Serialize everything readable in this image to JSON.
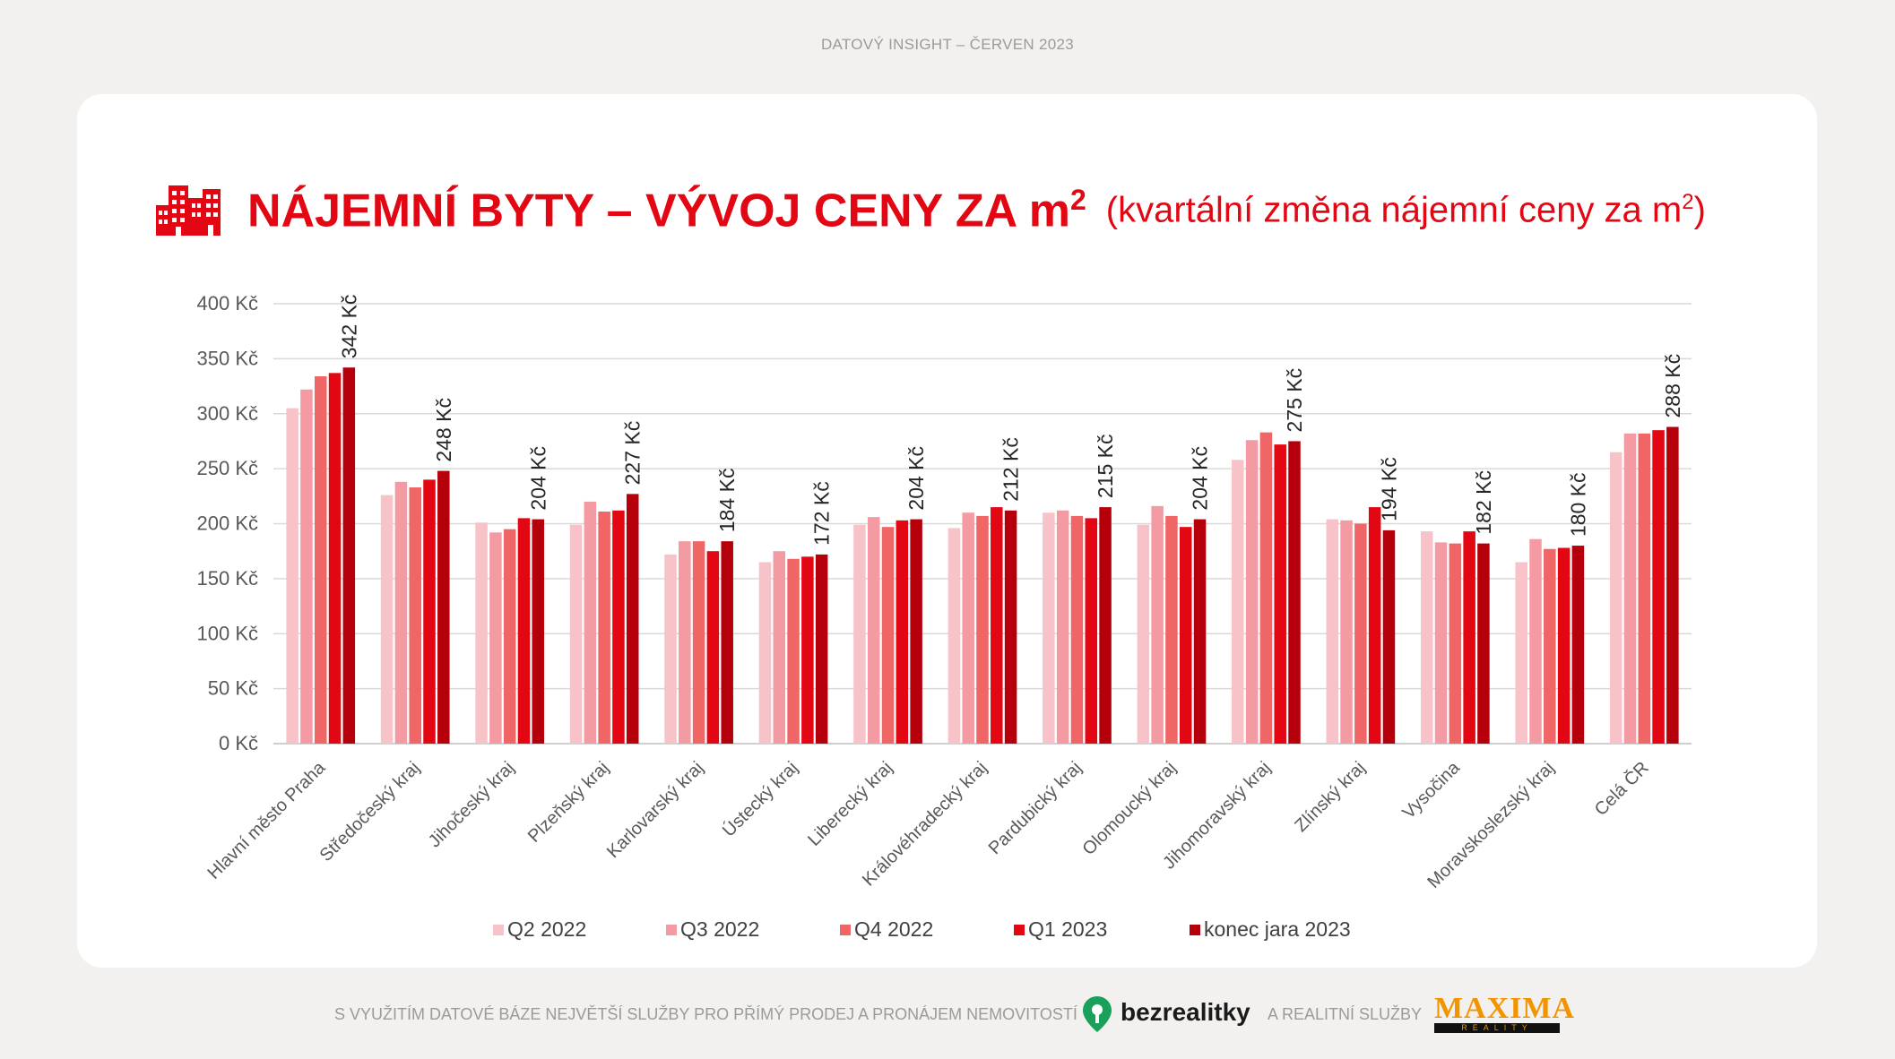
{
  "header": {
    "tag": "DATOVÝ INSIGHT – ČERVEN 2023"
  },
  "title": {
    "main": "NÁJEMNÍ BYTY – VÝVOJ CENY ZA m",
    "main_sup": "2",
    "sub": "(kvartální změna nájemní ceny za m",
    "sub_sup": "2",
    "sub_end": ")"
  },
  "icon": "buildings-icon",
  "footer": {
    "text_left": "S VYUŽITÍM DATOVÉ BÁZE NEJVĚTŠÍ SLUŽBY PRO PŘÍMÝ PRODEJ A PRONÁJEM NEMOVITOSTÍ",
    "brand1": "bezrealitky",
    "text_mid": "A REALITNÍ SLUŽBY",
    "brand2": "MAXIMA",
    "brand2_sub": "REALITY"
  },
  "colors": {
    "accent": "#e30613",
    "series": [
      "#f8c3c8",
      "#f49aa2",
      "#f06565",
      "#e30613",
      "#b5000b"
    ]
  },
  "chart_data": {
    "type": "bar",
    "ylim": [
      0,
      400
    ],
    "yticks": [
      0,
      50,
      100,
      150,
      200,
      250,
      300,
      350,
      400
    ],
    "ytick_labels": [
      "0 Kč",
      "50 Kč",
      "100 Kč",
      "150 Kč",
      "200 Kč",
      "250 Kč",
      "300 Kč",
      "350 Kč",
      "400 Kč"
    ],
    "grid": true,
    "legend_position": "bottom",
    "categories": [
      "Hlavní město Praha",
      "Středočeský kraj",
      "Jihočeský kraj",
      "Plzeňský kraj",
      "Karlovarský kraj",
      "Ústecký kraj",
      "Liberecký kraj",
      "Královéhradecký kraj",
      "Pardubický kraj",
      "Olomoucký kraj",
      "Jihomoravský kraj",
      "Zlínský kraj",
      "Vysočina",
      "Moravskoslezský kraj",
      "Celá ČR"
    ],
    "series": [
      {
        "name": "Q2 2022",
        "values": [
          305,
          226,
          201,
          199,
          172,
          165,
          199,
          196,
          210,
          199,
          258,
          204,
          193,
          165,
          265
        ]
      },
      {
        "name": "Q3 2022",
        "values": [
          322,
          238,
          192,
          220,
          184,
          175,
          206,
          210,
          212,
          216,
          276,
          203,
          183,
          186,
          282
        ]
      },
      {
        "name": "Q4 2022",
        "values": [
          334,
          233,
          195,
          211,
          184,
          168,
          197,
          207,
          207,
          207,
          283,
          200,
          182,
          177,
          282
        ]
      },
      {
        "name": "Q1 2023",
        "values": [
          337,
          240,
          205,
          212,
          175,
          170,
          203,
          215,
          205,
          197,
          272,
          215,
          193,
          178,
          285
        ]
      },
      {
        "name": "konec jara 2023",
        "values": [
          342,
          248,
          204,
          227,
          184,
          172,
          204,
          212,
          215,
          204,
          275,
          194,
          182,
          180,
          288
        ]
      }
    ],
    "data_labels": [
      "342 Kč",
      "248 Kč",
      "204 Kč",
      "227 Kč",
      "184 Kč",
      "172 Kč",
      "204 Kč",
      "212 Kč",
      "215 Kč",
      "204 Kč",
      "275 Kč",
      "194 Kč",
      "182 Kč",
      "180 Kč",
      "288 Kč"
    ]
  }
}
